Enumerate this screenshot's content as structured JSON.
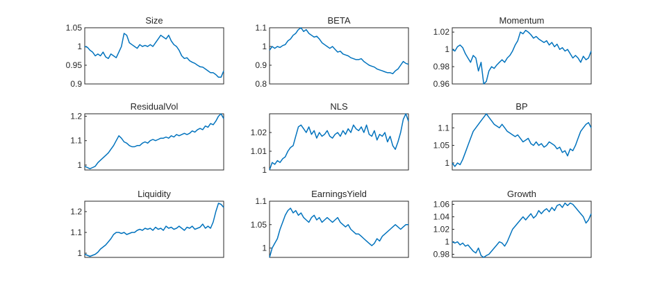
{
  "chart_data": [
    {
      "type": "line",
      "title": "Size",
      "ylim": [
        0.9,
        1.05
      ],
      "yticks": [
        0.9,
        0.95,
        1,
        1.05
      ],
      "ytick_labels": [
        "0.9",
        "0.95",
        "1",
        "1.05"
      ],
      "series": [
        {
          "values": [
            1.0,
            0.998,
            0.99,
            0.985,
            0.975,
            0.98,
            0.975,
            0.985,
            0.972,
            0.968,
            0.98,
            0.975,
            0.97,
            0.985,
            1.0,
            1.035,
            1.03,
            1.01,
            1.005,
            1.0,
            0.995,
            1.005,
            1.0,
            1.003,
            1.0,
            1.005,
            1.0,
            1.01,
            1.02,
            1.03,
            1.025,
            1.02,
            1.03,
            1.015,
            1.005,
            1.0,
            0.99,
            0.975,
            0.968,
            0.97,
            0.962,
            0.958,
            0.955,
            0.95,
            0.946,
            0.945,
            0.94,
            0.935,
            0.93,
            0.93,
            0.925,
            0.918,
            0.918,
            0.935
          ]
        }
      ]
    },
    {
      "type": "line",
      "title": "BETA",
      "ylim": [
        0.8,
        1.1
      ],
      "yticks": [
        0.8,
        0.9,
        1,
        1.1
      ],
      "ytick_labels": [
        "0.8",
        "0.9",
        "1",
        "1.1"
      ],
      "series": [
        {
          "values": [
            0.98,
            1.0,
            0.99,
            1.0,
            0.995,
            1.005,
            1.01,
            1.03,
            1.04,
            1.06,
            1.07,
            1.09,
            1.1,
            1.08,
            1.09,
            1.07,
            1.06,
            1.05,
            1.055,
            1.04,
            1.02,
            1.01,
            1.0,
            0.99,
            1.0,
            0.985,
            0.97,
            0.975,
            0.96,
            0.955,
            0.95,
            0.94,
            0.935,
            0.93,
            0.93,
            0.935,
            0.92,
            0.91,
            0.9,
            0.895,
            0.89,
            0.88,
            0.875,
            0.87,
            0.865,
            0.86,
            0.86,
            0.855,
            0.87,
            0.88,
            0.9,
            0.92,
            0.91,
            0.905
          ]
        }
      ]
    },
    {
      "type": "line",
      "title": "Momentum",
      "ylim": [
        0.96,
        1.025
      ],
      "yticks": [
        0.96,
        0.98,
        1,
        1.02
      ],
      "ytick_labels": [
        "0.96",
        "0.98",
        "1",
        "1.02"
      ],
      "series": [
        {
          "values": [
            1.0,
            0.998,
            1.003,
            1.005,
            1.002,
            0.995,
            0.99,
            0.985,
            0.993,
            0.99,
            0.975,
            0.985,
            0.96,
            0.963,
            0.975,
            0.98,
            0.978,
            0.982,
            0.985,
            0.988,
            0.985,
            0.99,
            0.993,
            0.998,
            1.005,
            1.01,
            1.02,
            1.018,
            1.022,
            1.02,
            1.017,
            1.013,
            1.015,
            1.012,
            1.01,
            1.008,
            1.01,
            1.005,
            1.008,
            1.003,
            1.006,
            1.0,
            1.002,
            0.998,
            1.0,
            0.995,
            0.99,
            0.993,
            0.99,
            0.985,
            0.992,
            0.988,
            0.99,
            0.998
          ]
        }
      ]
    },
    {
      "type": "line",
      "title": "ResidualVol",
      "ylim": [
        0.98,
        1.21
      ],
      "yticks": [
        1,
        1.1,
        1.2
      ],
      "ytick_labels": [
        "1",
        "1.1",
        "1.2"
      ],
      "series": [
        {
          "values": [
            0.995,
            0.99,
            0.985,
            0.99,
            0.995,
            1.01,
            1.02,
            1.03,
            1.04,
            1.05,
            1.065,
            1.08,
            1.1,
            1.12,
            1.11,
            1.095,
            1.09,
            1.08,
            1.075,
            1.075,
            1.08,
            1.08,
            1.09,
            1.095,
            1.09,
            1.1,
            1.105,
            1.1,
            1.105,
            1.11,
            1.11,
            1.115,
            1.11,
            1.12,
            1.115,
            1.125,
            1.12,
            1.125,
            1.13,
            1.125,
            1.13,
            1.14,
            1.135,
            1.145,
            1.15,
            1.145,
            1.16,
            1.155,
            1.17,
            1.165,
            1.18,
            1.2,
            1.21,
            1.19
          ]
        }
      ]
    },
    {
      "type": "line",
      "title": "NLS",
      "ylim": [
        1.0,
        1.03
      ],
      "yticks": [
        1,
        1.01,
        1.02
      ],
      "ytick_labels": [
        "1",
        "1.01",
        "1.02"
      ],
      "series": [
        {
          "values": [
            1.0,
            1.004,
            1.003,
            1.005,
            1.004,
            1.006,
            1.007,
            1.01,
            1.012,
            1.013,
            1.018,
            1.023,
            1.024,
            1.022,
            1.02,
            1.023,
            1.019,
            1.021,
            1.017,
            1.02,
            1.018,
            1.019,
            1.021,
            1.018,
            1.017,
            1.019,
            1.02,
            1.018,
            1.021,
            1.019,
            1.022,
            1.02,
            1.024,
            1.022,
            1.021,
            1.023,
            1.02,
            1.024,
            1.019,
            1.018,
            1.021,
            1.016,
            1.019,
            1.018,
            1.02,
            1.015,
            1.018,
            1.013,
            1.011,
            1.015,
            1.02,
            1.027,
            1.03,
            1.026
          ]
        }
      ]
    },
    {
      "type": "line",
      "title": "BP",
      "ylim": [
        0.98,
        1.14
      ],
      "yticks": [
        1,
        1.05,
        1.1
      ],
      "ytick_labels": [
        "1",
        "1.05",
        "1.1"
      ],
      "series": [
        {
          "values": [
            1.0,
            0.99,
            1.0,
            0.995,
            1.01,
            1.03,
            1.05,
            1.07,
            1.09,
            1.1,
            1.11,
            1.12,
            1.13,
            1.14,
            1.13,
            1.12,
            1.11,
            1.105,
            1.1,
            1.11,
            1.1,
            1.09,
            1.085,
            1.08,
            1.075,
            1.08,
            1.07,
            1.06,
            1.065,
            1.07,
            1.055,
            1.05,
            1.06,
            1.05,
            1.055,
            1.045,
            1.05,
            1.06,
            1.055,
            1.05,
            1.04,
            1.045,
            1.03,
            1.035,
            1.02,
            1.04,
            1.035,
            1.05,
            1.07,
            1.09,
            1.1,
            1.11,
            1.115,
            1.1
          ]
        }
      ]
    },
    {
      "type": "line",
      "title": "Liquidity",
      "ylim": [
        0.98,
        1.25
      ],
      "yticks": [
        1,
        1.1,
        1.2
      ],
      "ytick_labels": [
        "1",
        "1.1",
        "1.2"
      ],
      "series": [
        {
          "values": [
            0.995,
            0.99,
            0.985,
            0.99,
            0.995,
            1.005,
            1.02,
            1.03,
            1.04,
            1.055,
            1.07,
            1.09,
            1.1,
            1.1,
            1.095,
            1.1,
            1.09,
            1.095,
            1.1,
            1.1,
            1.11,
            1.115,
            1.11,
            1.12,
            1.115,
            1.12,
            1.11,
            1.125,
            1.115,
            1.12,
            1.11,
            1.13,
            1.12,
            1.125,
            1.115,
            1.12,
            1.13,
            1.12,
            1.11,
            1.125,
            1.12,
            1.13,
            1.115,
            1.12,
            1.125,
            1.14,
            1.12,
            1.13,
            1.12,
            1.15,
            1.2,
            1.24,
            1.235,
            1.22
          ]
        }
      ]
    },
    {
      "type": "line",
      "title": "EarningsYield",
      "ylim": [
        0.98,
        1.1
      ],
      "yticks": [
        1,
        1.05,
        1.1
      ],
      "ytick_labels": [
        "1",
        "1.05",
        "1.1"
      ],
      "series": [
        {
          "values": [
            0.98,
            1.0,
            1.01,
            1.02,
            1.04,
            1.055,
            1.07,
            1.08,
            1.085,
            1.075,
            1.08,
            1.07,
            1.075,
            1.065,
            1.06,
            1.055,
            1.065,
            1.07,
            1.06,
            1.065,
            1.055,
            1.06,
            1.065,
            1.06,
            1.055,
            1.06,
            1.065,
            1.055,
            1.05,
            1.045,
            1.05,
            1.04,
            1.035,
            1.03,
            1.03,
            1.025,
            1.02,
            1.015,
            1.01,
            1.005,
            1.01,
            1.02,
            1.015,
            1.025,
            1.03,
            1.035,
            1.04,
            1.045,
            1.05,
            1.045,
            1.04,
            1.045,
            1.05,
            1.05
          ]
        }
      ]
    },
    {
      "type": "line",
      "title": "Growth",
      "ylim": [
        0.975,
        1.065
      ],
      "yticks": [
        0.98,
        1,
        1.02,
        1.04,
        1.06
      ],
      "ytick_labels": [
        "0.98",
        "1",
        "1.02",
        "1.04",
        "1.06"
      ],
      "series": [
        {
          "values": [
            1.0,
            0.998,
            1.0,
            0.995,
            0.998,
            0.993,
            0.995,
            0.99,
            0.985,
            0.982,
            0.99,
            0.978,
            0.975,
            0.978,
            0.98,
            0.985,
            0.99,
            0.995,
            1.0,
            0.998,
            0.993,
            1.0,
            1.01,
            1.02,
            1.025,
            1.03,
            1.035,
            1.04,
            1.035,
            1.04,
            1.045,
            1.038,
            1.042,
            1.05,
            1.045,
            1.05,
            1.053,
            1.048,
            1.055,
            1.05,
            1.058,
            1.06,
            1.055,
            1.062,
            1.058,
            1.062,
            1.06,
            1.055,
            1.05,
            1.045,
            1.04,
            1.03,
            1.035,
            1.045
          ]
        }
      ]
    }
  ]
}
